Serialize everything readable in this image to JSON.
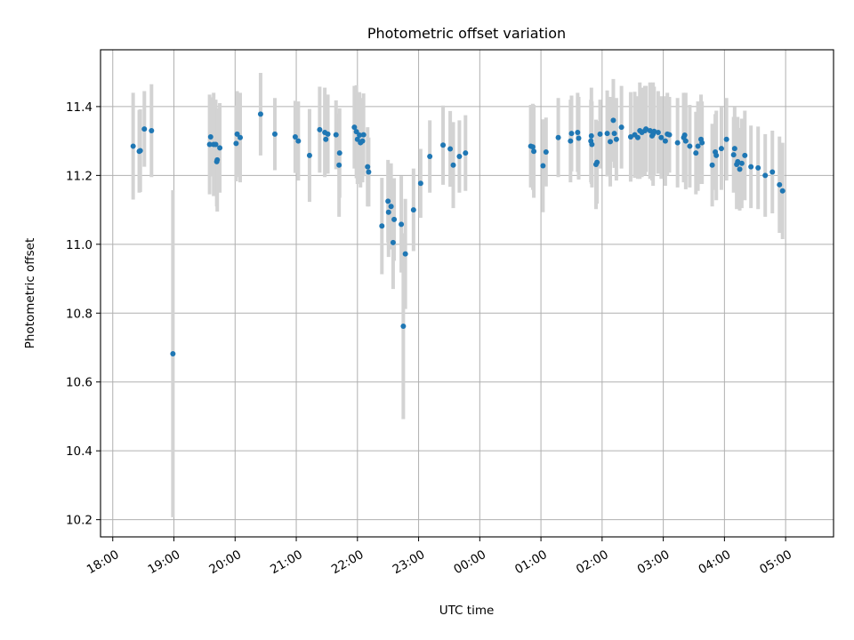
{
  "chart_data": {
    "type": "scatter",
    "title": "Photometric offset variation",
    "xlabel": "UTC time",
    "ylabel": "Photometric offset",
    "x_ticks": [
      {
        "value": 0,
        "label": "18:00"
      },
      {
        "value": 60,
        "label": "19:00"
      },
      {
        "value": 120,
        "label": "20:00"
      },
      {
        "value": 180,
        "label": "21:00"
      },
      {
        "value": 240,
        "label": "22:00"
      },
      {
        "value": 300,
        "label": "23:00"
      },
      {
        "value": 360,
        "label": "00:00"
      },
      {
        "value": 420,
        "label": "01:00"
      },
      {
        "value": 480,
        "label": "02:00"
      },
      {
        "value": 540,
        "label": "03:00"
      },
      {
        "value": 600,
        "label": "04:00"
      },
      {
        "value": 660,
        "label": "05:00"
      }
    ],
    "y_ticks": [
      10.2,
      10.4,
      10.6,
      10.8,
      11.0,
      11.2,
      11.4
    ],
    "xlim": [
      -12,
      707
    ],
    "ylim": [
      10.15,
      11.565
    ],
    "grid": true,
    "colors": {
      "point": "#1f77b4",
      "errorbar": "#d3d3d3",
      "grid": "#b0b0b0"
    },
    "series": [
      {
        "points": [
          [
            20,
            11.285,
            0.155
          ],
          [
            26,
            11.27,
            0.12
          ],
          [
            27,
            11.272,
            0.12
          ],
          [
            31,
            11.335,
            0.11
          ],
          [
            38,
            11.33,
            0.135
          ],
          [
            59,
            10.682,
            0.475
          ],
          [
            95,
            11.29,
            0.145
          ],
          [
            96,
            11.312,
            0.115
          ],
          [
            99,
            11.29,
            0.15
          ],
          [
            101,
            11.29,
            0.13
          ],
          [
            102,
            11.24,
            0.13
          ],
          [
            102.5,
            11.245,
            0.15
          ],
          [
            105,
            11.28,
            0.13
          ],
          [
            121,
            11.293,
            0.11
          ],
          [
            122,
            11.32,
            0.125
          ],
          [
            125,
            11.31,
            0.13
          ],
          [
            145,
            11.378,
            0.12
          ],
          [
            159,
            11.32,
            0.105
          ],
          [
            179,
            11.312,
            0.105
          ],
          [
            182,
            11.3,
            0.115
          ],
          [
            193,
            11.258,
            0.135
          ],
          [
            203,
            11.333,
            0.125
          ],
          [
            208,
            11.325,
            0.13
          ],
          [
            209,
            11.305,
            0.1
          ],
          [
            211,
            11.32,
            0.115
          ],
          [
            219,
            11.318,
            0.1
          ],
          [
            222,
            11.23,
            0.15
          ],
          [
            222.5,
            11.265,
            0.13
          ],
          [
            237,
            11.34,
            0.12
          ],
          [
            239,
            11.327,
            0.135
          ],
          [
            240,
            11.305,
            0.13
          ],
          [
            242,
            11.317,
            0.125
          ],
          [
            243,
            11.295,
            0.13
          ],
          [
            245,
            11.3,
            0.12
          ],
          [
            246,
            11.318,
            0.12
          ],
          [
            250,
            11.225,
            0.115
          ],
          [
            251,
            11.21,
            0.1
          ],
          [
            264,
            11.053,
            0.14
          ],
          [
            270,
            11.125,
            0.12
          ],
          [
            270.5,
            11.093,
            0.13
          ],
          [
            273,
            11.11,
            0.125
          ],
          [
            275,
            11.005,
            0.135
          ],
          [
            276,
            11.072,
            0.12
          ],
          [
            283,
            11.058,
            0.14
          ],
          [
            285,
            10.762,
            0.27
          ],
          [
            287,
            10.972,
            0.16
          ],
          [
            295,
            11.1,
            0.12
          ],
          [
            302,
            11.177,
            0.1
          ],
          [
            311,
            11.255,
            0.105
          ],
          [
            324,
            11.288,
            0.115
          ],
          [
            331,
            11.277,
            0.11
          ],
          [
            334,
            11.23,
            0.125
          ],
          [
            340,
            11.255,
            0.105
          ],
          [
            346,
            11.265,
            0.11
          ],
          [
            410,
            11.285,
            0.12
          ],
          [
            412,
            11.283,
            0.125
          ],
          [
            413,
            11.27,
            0.135
          ],
          [
            422,
            11.228,
            0.135
          ],
          [
            425,
            11.268,
            0.1
          ],
          [
            437,
            11.31,
            0.115
          ],
          [
            449,
            11.3,
            0.12
          ],
          [
            450,
            11.322,
            0.11
          ],
          [
            456,
            11.325,
            0.115
          ],
          [
            457,
            11.308,
            0.12
          ],
          [
            469,
            11.3,
            0.12
          ],
          [
            469.5,
            11.315,
            0.14
          ],
          [
            470,
            11.29,
            0.125
          ],
          [
            474,
            11.232,
            0.13
          ],
          [
            475,
            11.238,
            0.12
          ],
          [
            478,
            11.32,
            0.1
          ],
          [
            485,
            11.322,
            0.125
          ],
          [
            488,
            11.298,
            0.13
          ],
          [
            491,
            11.36,
            0.12
          ],
          [
            492,
            11.322,
            0.1
          ],
          [
            494,
            11.305,
            0.12
          ],
          [
            499,
            11.34,
            0.12
          ],
          [
            508,
            11.312,
            0.13
          ],
          [
            512,
            11.318,
            0.125
          ],
          [
            515,
            11.31,
            0.12
          ],
          [
            517,
            11.33,
            0.14
          ],
          [
            519,
            11.325,
            0.13
          ],
          [
            522,
            11.33,
            0.13
          ],
          [
            523,
            11.335,
            0.125
          ],
          [
            527,
            11.33,
            0.14
          ],
          [
            529,
            11.315,
            0.13
          ],
          [
            530,
            11.32,
            0.15
          ],
          [
            531,
            11.328,
            0.13
          ],
          [
            535,
            11.325,
            0.12
          ],
          [
            538,
            11.31,
            0.12
          ],
          [
            542,
            11.3,
            0.13
          ],
          [
            544,
            11.32,
            0.12
          ],
          [
            546,
            11.318,
            0.11
          ],
          [
            554,
            11.295,
            0.13
          ],
          [
            560,
            11.31,
            0.13
          ],
          [
            561,
            11.317,
            0.12
          ],
          [
            562,
            11.3,
            0.14
          ],
          [
            566,
            11.285,
            0.12
          ],
          [
            572,
            11.265,
            0.12
          ],
          [
            574,
            11.285,
            0.13
          ],
          [
            577,
            11.305,
            0.13
          ],
          [
            578,
            11.295,
            0.12
          ],
          [
            588,
            11.23,
            0.12
          ],
          [
            591,
            11.268,
            0.11
          ],
          [
            592,
            11.258,
            0.13
          ],
          [
            597,
            11.278,
            0.12
          ],
          [
            602,
            11.305,
            0.12
          ],
          [
            609,
            11.26,
            0.11
          ],
          [
            610,
            11.278,
            0.12
          ],
          [
            612,
            11.232,
            0.13
          ],
          [
            613,
            11.24,
            0.13
          ],
          [
            615,
            11.218,
            0.12
          ],
          [
            617,
            11.235,
            0.13
          ],
          [
            620,
            11.258,
            0.13
          ],
          [
            626,
            11.225,
            0.12
          ],
          [
            633,
            11.222,
            0.12
          ],
          [
            640,
            11.2,
            0.12
          ],
          [
            647,
            11.21,
            0.12
          ],
          [
            654,
            11.173,
            0.14
          ],
          [
            657,
            11.155,
            0.14
          ]
        ]
      }
    ]
  }
}
